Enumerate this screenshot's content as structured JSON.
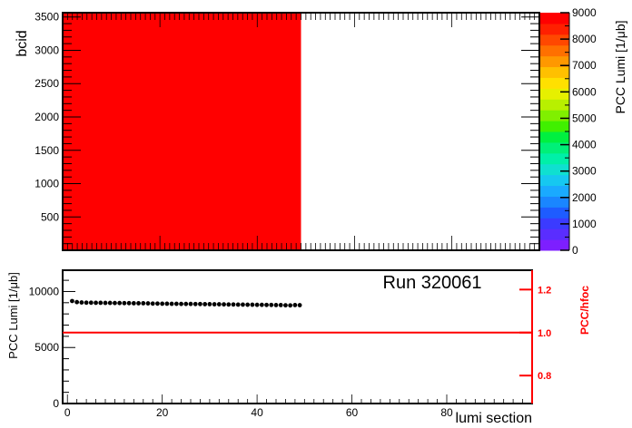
{
  "chart_data": [
    {
      "type": "heatmap",
      "xlabel": "",
      "ylabel": "bcid",
      "xlim": [
        0,
        98
      ],
      "ylim": [
        1,
        3564
      ],
      "y_ticks": [
        500,
        1000,
        1500,
        2000,
        2500,
        3000,
        3500
      ],
      "colorbar": {
        "label": "PCC Lumi [1/μb]",
        "range": [
          0,
          9000
        ],
        "ticks": [
          0,
          1000,
          2000,
          3000,
          4000,
          5000,
          6000,
          7000,
          8000,
          9000
        ]
      },
      "filled_region": {
        "x_range": [
          0,
          49
        ],
        "y_range": [
          1,
          3564
        ],
        "value": 9000,
        "color": "#ff0000"
      }
    },
    {
      "type": "scatter",
      "xlabel": "lumi section",
      "ylabel": "PCC Lumi [1/μb]",
      "y2label": "PCC/hfoc",
      "annotation": "Run 320061",
      "xlim": [
        -1,
        98
      ],
      "ylim": [
        0,
        11900
      ],
      "x_ticks": [
        0,
        20,
        40,
        60,
        80
      ],
      "y_ticks": [
        0,
        5000,
        10000
      ],
      "y2lim": [
        0.67,
        1.29
      ],
      "y2_ticks": [
        0.8,
        1.0,
        1.2
      ],
      "y2_tick_labels": [
        "0.8",
        "1.0",
        "1.2"
      ],
      "reference_line": {
        "y2": 1.0,
        "color": "#ff0000"
      },
      "series": [
        {
          "color": "#000000",
          "x": [
            1,
            2,
            3,
            4,
            5,
            6,
            7,
            8,
            9,
            10,
            11,
            12,
            13,
            14,
            15,
            16,
            17,
            18,
            19,
            20,
            21,
            22,
            23,
            24,
            25,
            26,
            27,
            28,
            29,
            30,
            31,
            32,
            33,
            34,
            35,
            36,
            37,
            38,
            39,
            40,
            41,
            42,
            43,
            44,
            45,
            46,
            47,
            48,
            49
          ],
          "y": [
            9150,
            9050,
            9020,
            9000,
            9000,
            8990,
            8990,
            8980,
            8980,
            8970,
            8970,
            8960,
            8960,
            8950,
            8950,
            8950,
            8940,
            8920,
            8920,
            8910,
            8910,
            8900,
            8900,
            8890,
            8890,
            8890,
            8880,
            8880,
            8870,
            8870,
            8860,
            8860,
            8850,
            8840,
            8840,
            8830,
            8830,
            8820,
            8820,
            8810,
            8810,
            8800,
            8800,
            8790,
            8790,
            8770,
            8760,
            8790,
            8780
          ]
        }
      ]
    }
  ]
}
